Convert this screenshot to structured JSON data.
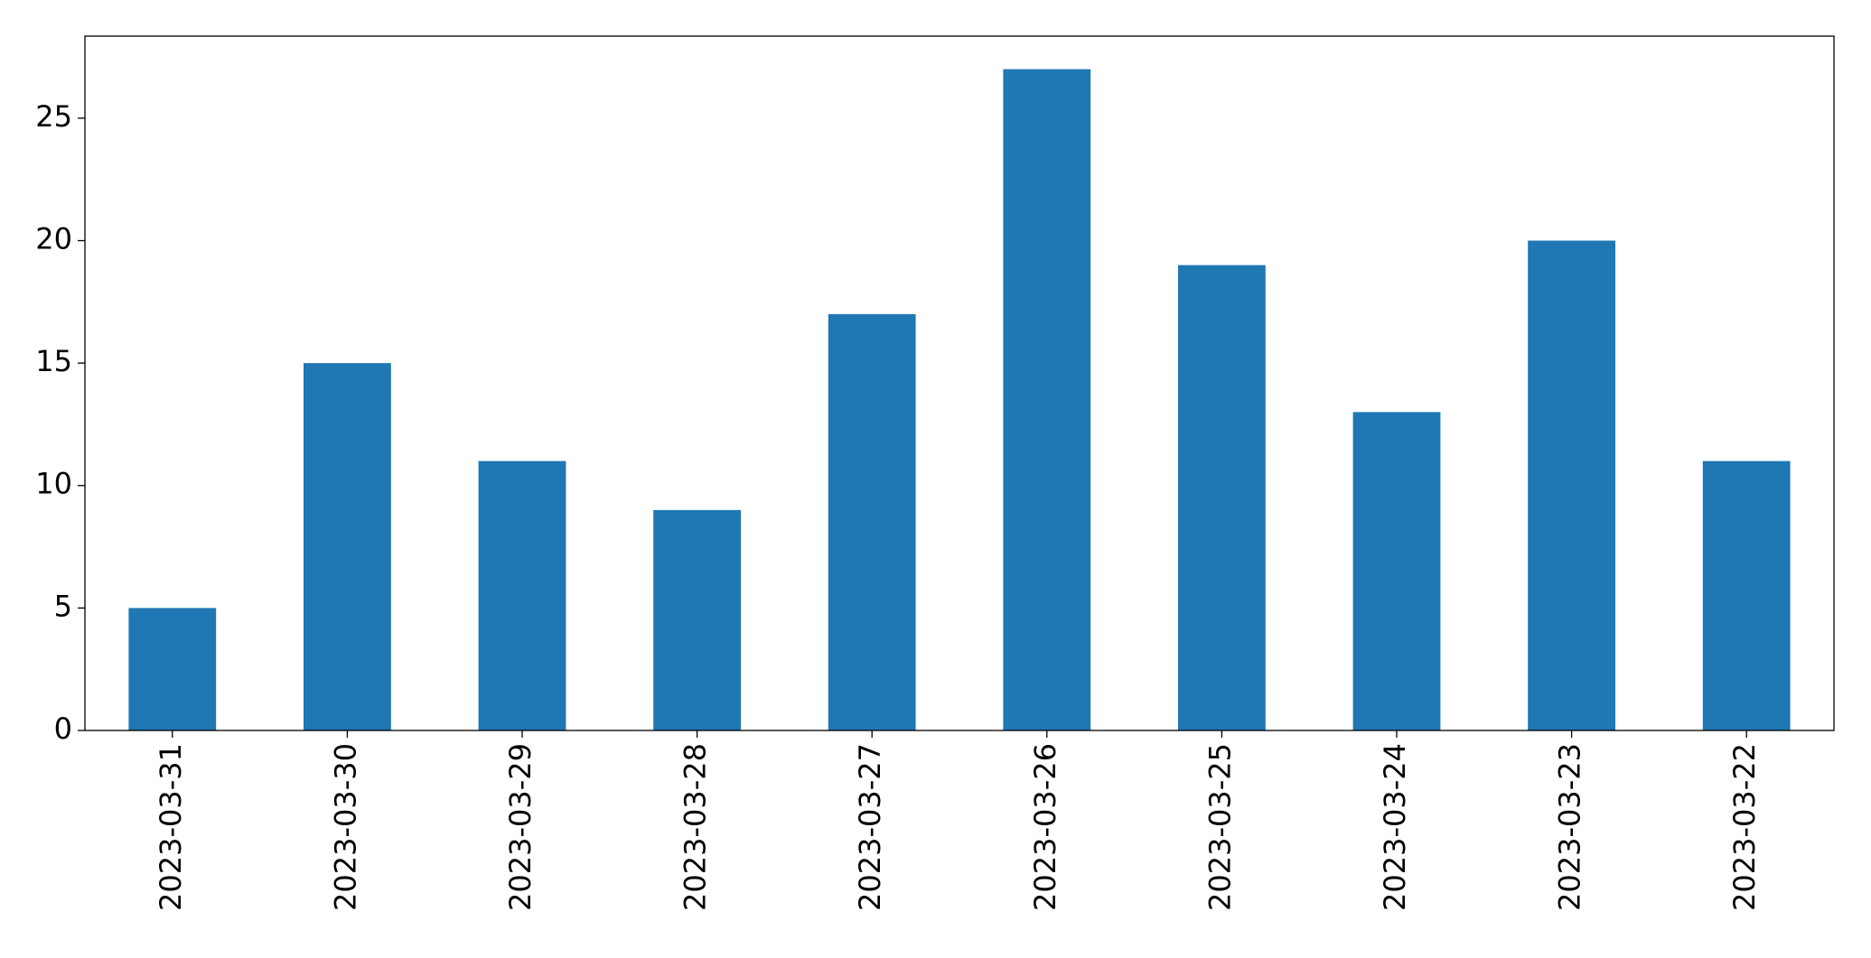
{
  "chart_data": {
    "type": "bar",
    "categories": [
      "2023-03-31",
      "2023-03-30",
      "2023-03-29",
      "2023-03-28",
      "2023-03-27",
      "2023-03-26",
      "2023-03-25",
      "2023-03-24",
      "2023-03-23",
      "2023-03-22"
    ],
    "values": [
      5,
      15,
      11,
      9,
      17,
      27,
      19,
      13,
      20,
      11
    ],
    "color": "#1f77b4",
    "ylim": [
      0,
      28.35
    ],
    "yticks": [
      0,
      5,
      10,
      15,
      20,
      25
    ],
    "grid": false
  }
}
